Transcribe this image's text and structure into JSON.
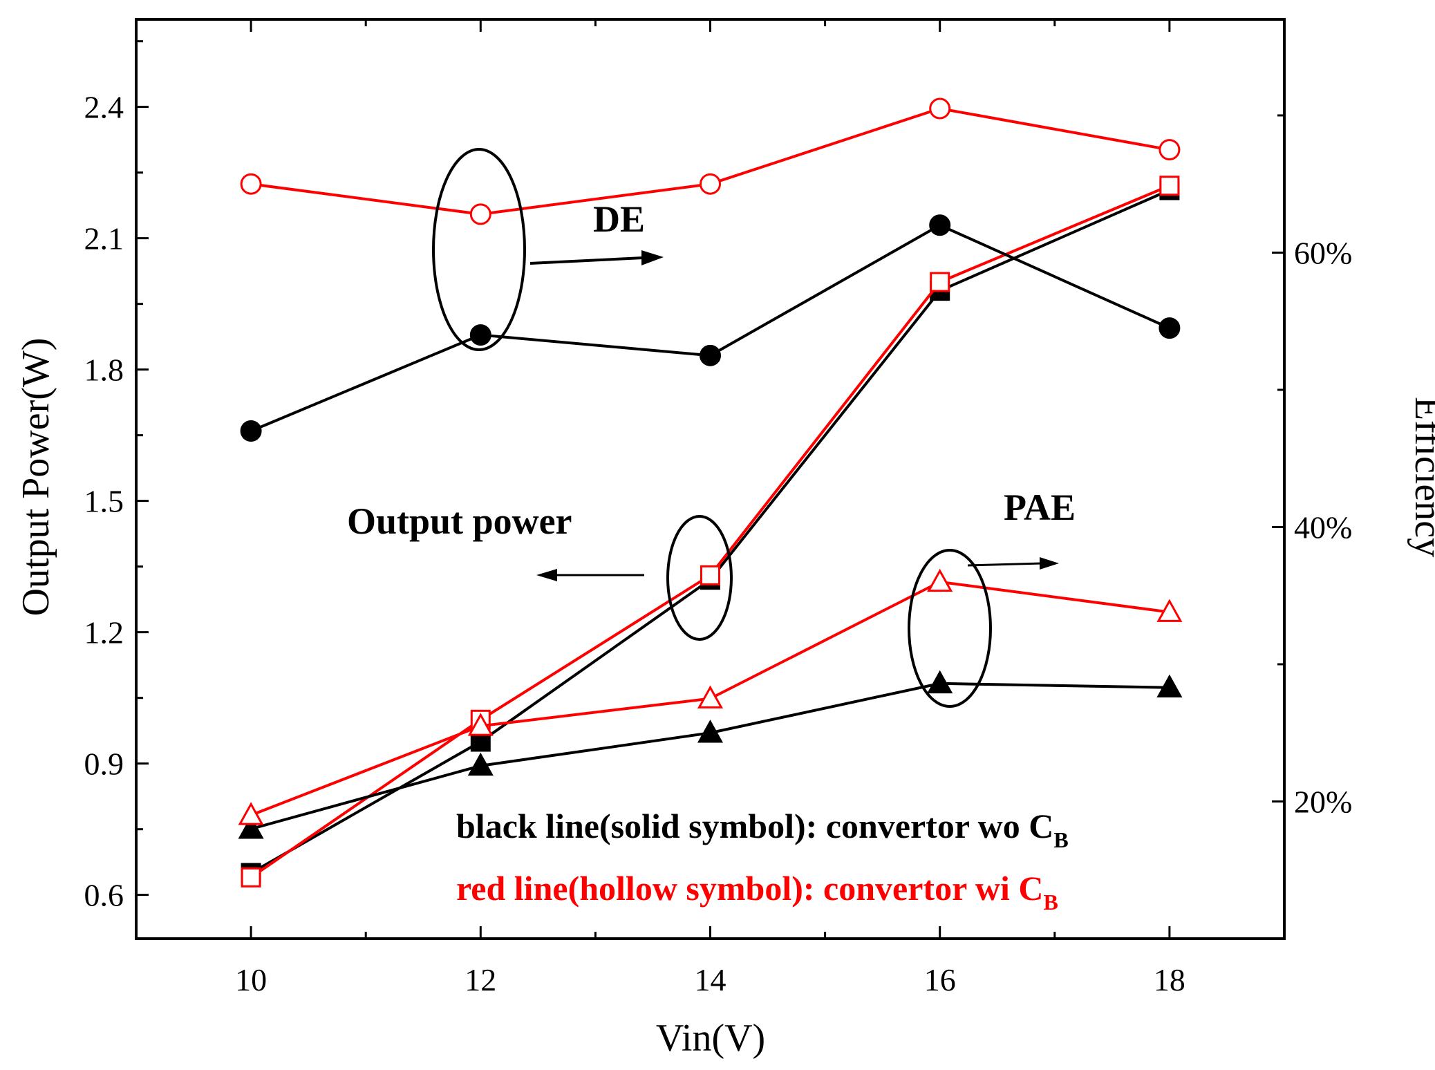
{
  "chart_data": {
    "type": "line",
    "title": "",
    "xlabel": "Vin(V)",
    "ylabel_left": "Output Power(W)",
    "ylabel_right": "Efficiency",
    "xlim": [
      9,
      19
    ],
    "ylim_left": [
      0.5,
      2.6
    ],
    "ylim_right": [
      0.1,
      0.77
    ],
    "x": [
      10,
      12,
      14,
      16,
      18
    ],
    "x_tick_labels": [
      "10",
      "12",
      "14",
      "16",
      "18"
    ],
    "y_left_ticks": [
      0.6,
      0.9,
      1.2,
      1.5,
      1.8,
      2.1,
      2.4
    ],
    "y_left_tick_labels": [
      "0.6",
      "0.9",
      "1.2",
      "1.5",
      "1.8",
      "2.1",
      "2.4"
    ],
    "y_right_ticks": [
      0.2,
      0.4,
      0.6
    ],
    "y_right_tick_labels": [
      "20%",
      "40%",
      "60%"
    ],
    "series": [
      {
        "name": "Output power wo CB",
        "axis": "left",
        "color": "#000000",
        "marker": "square-filled",
        "values": [
          0.65,
          0.95,
          1.32,
          1.98,
          2.21
        ]
      },
      {
        "name": "Output power wi CB",
        "axis": "left",
        "color": "#ff0000",
        "marker": "square-hollow",
        "values": [
          0.64,
          1.0,
          1.33,
          2.0,
          2.22
        ]
      },
      {
        "name": "DE wo CB",
        "axis": "right",
        "color": "#000000",
        "marker": "circle-filled",
        "values": [
          0.47,
          0.54,
          0.525,
          0.62,
          0.545
        ]
      },
      {
        "name": "DE wi CB",
        "axis": "right",
        "color": "#ff0000",
        "marker": "circle-hollow",
        "values": [
          0.65,
          0.628,
          0.65,
          0.705,
          0.675
        ]
      },
      {
        "name": "PAE wo CB",
        "axis": "right",
        "color": "#000000",
        "marker": "triangle-filled",
        "values": [
          0.18,
          0.226,
          0.25,
          0.286,
          0.283
        ]
      },
      {
        "name": "PAE wi CB",
        "axis": "right",
        "color": "#ff0000",
        "marker": "triangle-hollow",
        "values": [
          0.19,
          0.255,
          0.275,
          0.36,
          0.338
        ]
      }
    ],
    "annotations": {
      "de_label": "DE",
      "pae_label": "PAE",
      "output_power_label": "Output power"
    },
    "legend_notes": [
      {
        "text": "black line(solid symbol): convertor wo C",
        "sub": "B",
        "color": "#000000"
      },
      {
        "text": "red line(hollow symbol): convertor wi C",
        "sub": "B",
        "color": "#ff0000"
      }
    ]
  }
}
